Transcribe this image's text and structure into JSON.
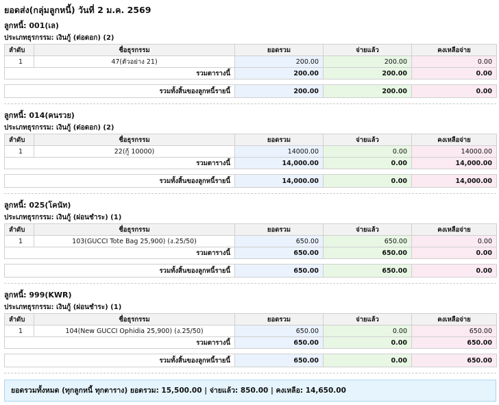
{
  "title": "ยอดส่ง(กลุ่มลูกหนี้) วันที่ 2 ม.ค. 2569",
  "headers": {
    "no": "ลำดับ",
    "name": "ชื่อธุรกรรม",
    "total": "ยอดรวม",
    "paid": "จ่ายแล้ว",
    "remaining": "คงเหลือจ่าย"
  },
  "labels": {
    "table_subtotal": "รวมตารางนี้",
    "debtor_total": "รวมทั้งสิ้นของลูกหนี้รายนี้"
  },
  "debtors": [
    {
      "title": "ลูกหนี้: 001(เล)",
      "type": "ประเภทธุรกรรม: เงินกู้ (ต่อดอก) (2)",
      "row": {
        "no": "1",
        "name": "47(ตัวอย่าง 21)",
        "total": "200.00",
        "paid": "200.00",
        "remaining": "0.00"
      },
      "subtotal": {
        "total": "200.00",
        "paid": "200.00",
        "remaining": "0.00"
      },
      "grand": {
        "total": "200.00",
        "paid": "200.00",
        "remaining": "0.00"
      }
    },
    {
      "title": "ลูกหนี้: 014(คนรวย)",
      "type": "ประเภทธุรกรรม: เงินกู้ (ต่อดอก) (2)",
      "row": {
        "no": "1",
        "name": "22(กู้ 10000)",
        "total": "14000.00",
        "paid": "0.00",
        "remaining": "14000.00"
      },
      "subtotal": {
        "total": "14,000.00",
        "paid": "0.00",
        "remaining": "14,000.00"
      },
      "grand": {
        "total": "14,000.00",
        "paid": "0.00",
        "remaining": "14,000.00"
      }
    },
    {
      "title": "ลูกหนี้: 025(โคนัท)",
      "type": "ประเภทธุรกรรม: เงินกู้ (ผ่อนชำระ) (1)",
      "row": {
        "no": "1",
        "name": "103(GUCCI Tote Bag 25,900) (ง.25/50)",
        "total": "650.00",
        "paid": "650.00",
        "remaining": "0.00"
      },
      "subtotal": {
        "total": "650.00",
        "paid": "650.00",
        "remaining": "0.00"
      },
      "grand": {
        "total": "650.00",
        "paid": "650.00",
        "remaining": "0.00"
      }
    },
    {
      "title": "ลูกหนี้: 999(KWR)",
      "type": "ประเภทธุรกรรม: เงินกู้ (ผ่อนชำระ) (1)",
      "row": {
        "no": "1",
        "name": "104(New GUCCI Ophidia 25,900) (ง.25/50)",
        "total": "650.00",
        "paid": "0.00",
        "remaining": "650.00"
      },
      "subtotal": {
        "total": "650.00",
        "paid": "0.00",
        "remaining": "650.00"
      },
      "grand": {
        "total": "650.00",
        "paid": "0.00",
        "remaining": "650.00"
      }
    }
  ],
  "grand_summary": "ยอดรวมทั้งหมด (ทุกลูกหนี้ ทุกตาราง)  ยอดรวม: 15,500.00 | จ่ายแล้ว: 850.00 | คงเหลือ: 14,650.00"
}
